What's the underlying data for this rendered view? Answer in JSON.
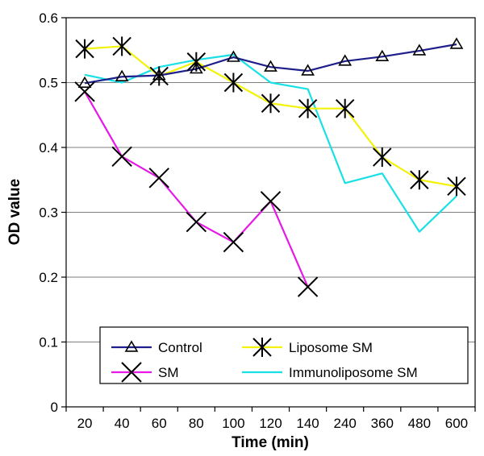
{
  "chart_data": {
    "type": "line",
    "title": "",
    "xlabel": "Time (min)",
    "ylabel": "OD value",
    "categories": [
      "20",
      "40",
      "60",
      "80",
      "100",
      "120",
      "140",
      "240",
      "360",
      "480",
      "600"
    ],
    "ylim": [
      0,
      0.6
    ],
    "yticks": [
      "0",
      "0.1",
      "0.2",
      "0.3",
      "0.4",
      "0.5",
      "0.6"
    ],
    "grid": "horizontal",
    "legend_placement": "bottom-right",
    "series": [
      {
        "name": "Control",
        "color": "#1f1f8c",
        "marker": "triangle",
        "values": [
          0.499,
          0.509,
          0.511,
          0.521,
          0.539,
          0.524,
          0.518,
          0.533,
          0.54,
          0.549,
          0.559
        ]
      },
      {
        "name": "SM",
        "color": "#e619e6",
        "marker": "x",
        "values": [
          0.486,
          0.386,
          0.353,
          0.285,
          0.254,
          0.317,
          0.185,
          null,
          null,
          null,
          null
        ]
      },
      {
        "name": "Liposome SM",
        "color": "#f2f20a",
        "marker": "asterisk",
        "values": [
          0.552,
          0.556,
          0.51,
          0.532,
          0.5,
          0.468,
          0.46,
          0.46,
          0.385,
          0.35,
          0.34
        ]
      },
      {
        "name": "Immunoliposome SM",
        "color": "#19e0e6",
        "marker": "none",
        "values": [
          0.512,
          0.5,
          0.524,
          0.535,
          0.543,
          0.5,
          0.49,
          0.345,
          0.36,
          0.27,
          0.325
        ]
      }
    ]
  }
}
